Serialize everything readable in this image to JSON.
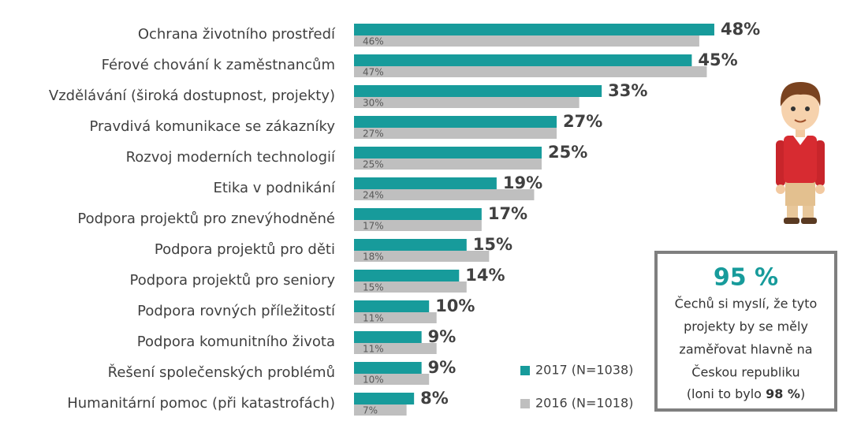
{
  "chart_data": {
    "type": "bar",
    "orientation": "horizontal",
    "categories": [
      "Ochrana životního prostředí",
      "Férové chování k zaměstnancům",
      "Vzdělávání (široká dostupnost, projekty)",
      "Pravdivá komunikace se zákazníky",
      "Rozvoj moderních technologií",
      "Etika v podnikání",
      "Podpora projektů pro znevýhodněné",
      "Podpora projektů pro děti",
      "Podpora projektů pro seniory",
      "Podpora rovných příležitostí",
      "Podpora komunitního života",
      "Řešení společenských problémů",
      "Humanitární pomoc (při katastrofách)"
    ],
    "series": [
      {
        "name": "2017 (N=1038)",
        "color": "#179b9b",
        "values": [
          48,
          45,
          33,
          27,
          25,
          19,
          17,
          15,
          14,
          10,
          9,
          9,
          8
        ],
        "value_labels": [
          "48%",
          "45%",
          "33%",
          "27%",
          "25%",
          "19%",
          "17%",
          "15%",
          "14%",
          "10%",
          "9%",
          "9%",
          "8%"
        ]
      },
      {
        "name": "2016 (N=1018)",
        "color": "#bfbfbf",
        "values": [
          46,
          47,
          30,
          27,
          25,
          24,
          17,
          18,
          15,
          11,
          11,
          10,
          7
        ],
        "value_labels": [
          "46%",
          "47%",
          "30%",
          "27%",
          "25%",
          "24%",
          "17%",
          "18%",
          "15%",
          "11%",
          "11%",
          "10%",
          "7%"
        ]
      }
    ]
  },
  "callout": {
    "headline": "95 %",
    "lines": [
      "Čechů si myslí, že tyto",
      "projekty by se měly",
      "zaměřovat hlavně na",
      "Českou republiku"
    ],
    "last_line": [
      "(loni to bylo ",
      "98 %",
      ")"
    ]
  }
}
